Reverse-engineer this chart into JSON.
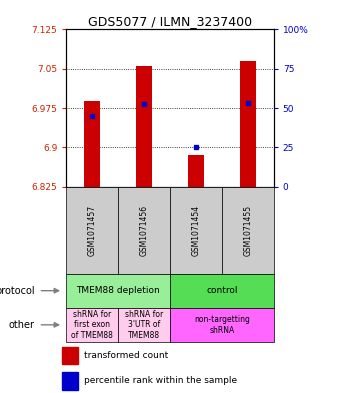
{
  "title": "GDS5077 / ILMN_3237400",
  "samples": [
    "GSM1071457",
    "GSM1071456",
    "GSM1071454",
    "GSM1071455"
  ],
  "transformed_counts": [
    6.988,
    7.055,
    6.885,
    7.065
  ],
  "percentile_ranks": [
    6.96,
    6.982,
    6.9,
    6.984
  ],
  "bar_bottom": 6.825,
  "ylim_min": 6.825,
  "ylim_max": 7.125,
  "yticks_left": [
    6.825,
    6.9,
    6.975,
    7.05,
    7.125
  ],
  "yticks_right_vals": [
    0,
    25,
    50,
    75,
    100
  ],
  "protocol_groups": [
    {
      "label": "TMEM88 depletion",
      "cols": [
        0,
        1
      ],
      "color": "#99EE99"
    },
    {
      "label": "control",
      "cols": [
        2,
        3
      ],
      "color": "#55DD55"
    }
  ],
  "other_groups": [
    {
      "label": "shRNA for\nfirst exon\nof TMEM88",
      "cols": [
        0
      ],
      "color": "#FFCCEE"
    },
    {
      "label": "shRNA for\n3'UTR of\nTMEM88",
      "cols": [
        1
      ],
      "color": "#FFCCEE"
    },
    {
      "label": "non-targetting\nshRNA",
      "cols": [
        2,
        3
      ],
      "color": "#FF66FF"
    }
  ],
  "bar_color": "#CC0000",
  "dot_color": "#0000CC",
  "bar_width": 0.3,
  "left_label_color": "#CC2200",
  "right_label_color": "#0000CC",
  "sample_box_color": "#CCCCCC",
  "grid_color": "black",
  "legend_red_label": "transformed count",
  "legend_blue_label": "percentile rank within the sample"
}
